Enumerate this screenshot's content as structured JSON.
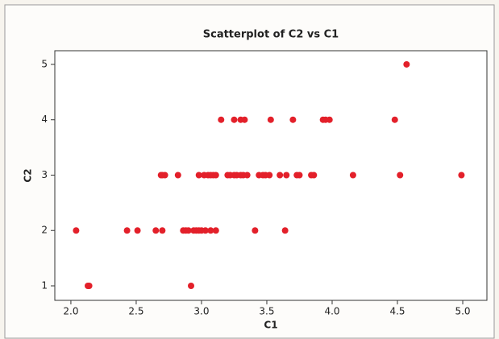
{
  "chart_data": {
    "type": "scatter",
    "title": "Scatterplot of C2 vs C1",
    "x_label": "C1",
    "y_label": "C2",
    "x": [
      2.13,
      2.14,
      2.92,
      2.04,
      2.43,
      2.51,
      2.65,
      2.7,
      2.86,
      2.88,
      2.9,
      2.94,
      2.96,
      2.98,
      3.0,
      3.03,
      3.07,
      3.11,
      3.41,
      3.64,
      2.69,
      2.7,
      2.72,
      2.82,
      2.98,
      3.02,
      3.05,
      3.07,
      3.09,
      3.11,
      3.2,
      3.22,
      3.25,
      3.27,
      3.3,
      3.32,
      3.35,
      3.44,
      3.47,
      3.49,
      3.52,
      3.6,
      3.65,
      3.73,
      3.75,
      3.84,
      3.86,
      4.16,
      4.52,
      4.99,
      3.15,
      3.25,
      3.3,
      3.33,
      3.53,
      3.7,
      3.93,
      3.95,
      3.98,
      4.48,
      4.57
    ],
    "values": [
      1,
      1,
      1,
      2,
      2,
      2,
      2,
      2,
      2,
      2,
      2,
      2,
      2,
      2,
      2,
      2,
      2,
      2,
      2,
      2,
      3,
      3,
      3,
      3,
      3,
      3,
      3,
      3,
      3,
      3,
      3,
      3,
      3,
      3,
      3,
      3,
      3,
      3,
      3,
      3,
      3,
      3,
      3,
      3,
      3,
      3,
      3,
      3,
      3,
      3,
      4,
      4,
      4,
      4,
      4,
      4,
      4,
      4,
      4,
      4,
      5
    ],
    "color": "#e3202a",
    "xlim": [
      1.877,
      5.185
    ],
    "ylim": [
      0.738,
      5.247
    ],
    "xticks": [
      {
        "value": 2.0,
        "label": "2.0"
      },
      2.5,
      {
        "value": 3.0,
        "label": "3.0"
      },
      3.5,
      {
        "value": 4.0,
        "label": "4.0"
      },
      4.5,
      {
        "value": 5.0,
        "label": "5.0"
      }
    ],
    "yticks": [
      1,
      2,
      3,
      4,
      5
    ]
  }
}
